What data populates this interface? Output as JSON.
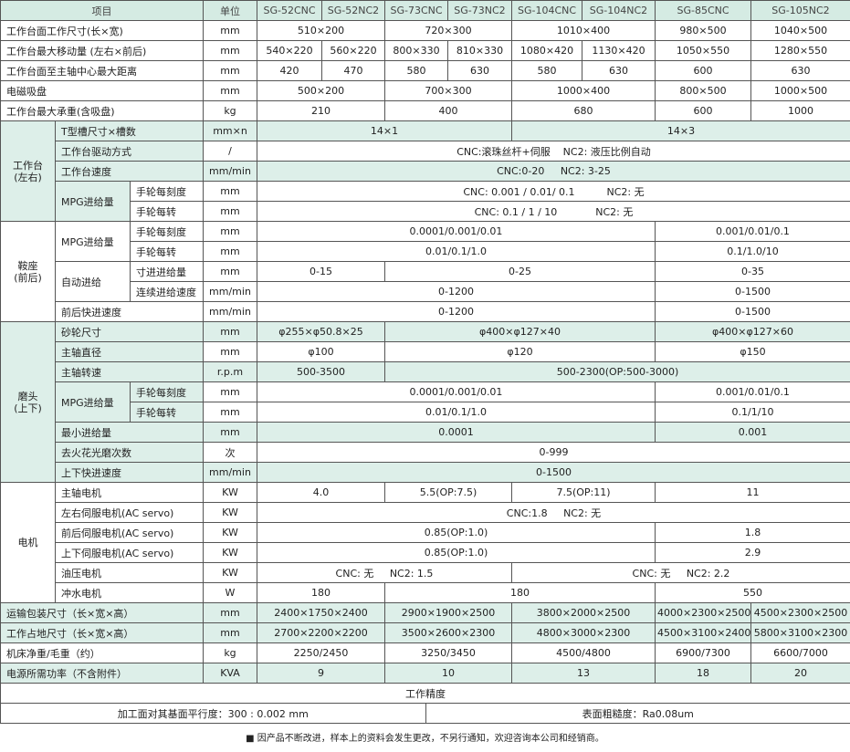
{
  "header": [
    "项目",
    "单位",
    "SG-52CNC",
    "SG-52NC2",
    "SG-73CNC",
    "SG-73NC2",
    "SG-104CNC",
    "SG-104NC2",
    "SG-85CNC",
    "SG-105NC2"
  ],
  "rows": [
    [
      "工作台面工作尺寸(长×宽)",
      "mm",
      "510×200",
      "720×300",
      "1010×400",
      "980×500",
      "1040×500"
    ],
    [
      "工作台最大移动量 (左右×前后)",
      "mm",
      "540×220",
      "560×220",
      "800×330",
      "810×330",
      "1080×420",
      "1130×420",
      "1050×550",
      "1280×550"
    ],
    [
      "工作台面至主轴中心最大距离",
      "mm",
      "420",
      "470",
      "580",
      "630",
      "580",
      "630",
      "600",
      "630"
    ],
    [
      "电磁吸盘",
      "mm",
      "500×200",
      "700×300",
      "1000×400",
      "800×500",
      "1000×500"
    ],
    [
      "工作台最大承重(含吸盘)",
      "kg",
      "210",
      "400",
      "680",
      "600",
      "1000"
    ],
    [
      "工作台\n(左右)",
      "T型槽尺寸×槽数",
      "mm×n",
      "14×1",
      "14×3"
    ],
    [
      "工作台驱动方式",
      "/",
      "CNC:滚珠丝杆+伺服    NC2: 液压比例自动"
    ],
    [
      "工作台速度",
      "mm/min",
      "CNC:0-20     NC2: 3-25"
    ],
    [
      "MPG进给量",
      "手轮每刻度",
      "mm",
      "CNC: 0.001 / 0.01/ 0.1          NC2: 无"
    ],
    [
      "手轮每转",
      "mm",
      "CNC: 0.1 / 1 / 10            NC2: 无"
    ],
    [
      "鞍座\n(前后)",
      "MPG进给量",
      "手轮每刻度",
      "mm",
      "0.0001/0.001/0.01",
      "0.001/0.01/0.1"
    ],
    [
      "手轮每转",
      "mm",
      "0.01/0.1/1.0",
      "0.1/1.0/10"
    ],
    [
      "自动进给",
      "寸进进给量",
      "mm",
      "0-15",
      "0-25",
      "0-35"
    ],
    [
      "连续进给速度",
      "mm/min",
      "0-1200",
      "0-1500"
    ],
    [
      "前后快进速度",
      "mm/min",
      "0-1200",
      "0-1500"
    ],
    [
      "磨头\n(上下)",
      "砂轮尺寸",
      "mm",
      "φ255×φ50.8×25",
      "φ400×φ127×40",
      "φ400×φ127×60"
    ],
    [
      "主轴直径",
      "mm",
      "φ100",
      "φ120",
      "φ150"
    ],
    [
      "主轴转速",
      "r.p.m",
      "500-3500",
      "500-2300(OP:500-3000)"
    ],
    [
      "MPG进给量",
      "手轮每刻度",
      "mm",
      "0.0001/0.001/0.01",
      "0.001/0.01/0.1"
    ],
    [
      "手轮每转",
      "mm",
      "0.01/0.1/1.0",
      "0.1/1/10"
    ],
    [
      "最小进给量",
      "mm",
      "0.0001",
      "0.001"
    ],
    [
      "去火花光磨次数",
      "次",
      "0-999"
    ],
    [
      "上下快进速度",
      "mm/min",
      "0-1500"
    ],
    [
      "电机",
      "主轴电机",
      "KW",
      "4.0",
      "5.5(OP:7.5)",
      "7.5(OP:11)",
      "11"
    ],
    [
      "左右伺服电机(AC servo)",
      "KW",
      "CNC:1.8     NC2: 无"
    ],
    [
      "前后伺服电机(AC servo)",
      "KW",
      "0.85(OP:1.0)",
      "1.8"
    ],
    [
      "上下伺服电机(AC servo)",
      "KW",
      "0.85(OP:1.0)",
      "2.9"
    ],
    [
      "油压电机",
      "KW",
      "CNC: 无     NC2: 1.5",
      "CNC: 无     NC2: 2.2"
    ],
    [
      "冲水电机",
      "W",
      "180",
      "180",
      "550"
    ],
    [
      "运输包装尺寸（长×宽×高）",
      "mm",
      "2400×1750×2400",
      "2900×1900×2500",
      "3800×2000×2500",
      "4000×2300×2500",
      "4500×2300×2500"
    ],
    [
      "工作占地尺寸（长×宽×高）",
      "mm",
      "2700×2200×2200",
      "3500×2600×2300",
      "4800×3000×2300",
      "4500×3100×2400",
      "5800×3100×2300"
    ],
    [
      "机床净重/毛重（约）",
      "kg",
      "2250/2450",
      "3250/3450",
      "4500/4800",
      "6900/7300",
      "6600/7000"
    ],
    [
      "电源所需功率（不含附件）",
      "KVA",
      "9",
      "10",
      "13",
      "18",
      "20"
    ]
  ],
  "precision": {
    "title": "工作精度",
    "parallelism": "加工面对其基面平行度：300 : 0.002 mm",
    "roughness": "表面粗糙度：Ra0.08um"
  },
  "footnote": "■ 因产品不断改进，样本上的资料会发生更改，不另行通知，欢迎咨询本公司和经销商。"
}
